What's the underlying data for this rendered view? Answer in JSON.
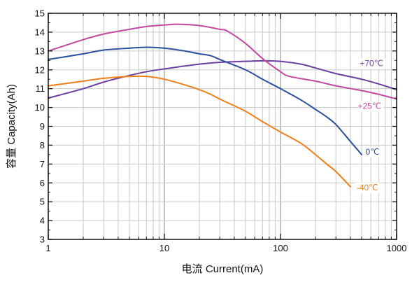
{
  "chart_data": {
    "type": "line",
    "x_scale": "log",
    "grid": true,
    "xlabel": "电流 Current(mA)",
    "ylabel": "容量 Capacity(Ah)",
    "xlim": [
      1,
      1000
    ],
    "ylim": [
      3,
      15
    ],
    "x_ticks": [
      1,
      10,
      100,
      1000
    ],
    "x_tick_labels": [
      "1",
      "10",
      "100",
      "1000"
    ],
    "y_ticks": [
      3,
      4,
      5,
      6,
      7,
      8,
      9,
      10,
      11,
      12,
      13,
      14,
      15
    ],
    "y_tick_labels": [
      "3",
      "4",
      "5",
      "6",
      "7",
      "8",
      "9",
      "10",
      "11",
      "12",
      "13",
      "14",
      "15"
    ],
    "series": [
      {
        "name": "+70℃",
        "color": "#6a3fa0",
        "x": [
          1,
          2,
          3,
          5,
          7,
          10,
          20,
          30,
          50,
          70,
          100,
          150,
          200,
          300,
          500,
          700,
          1000
        ],
        "y": [
          10.5,
          11.0,
          11.35,
          11.7,
          11.9,
          12.05,
          12.3,
          12.4,
          12.45,
          12.48,
          12.45,
          12.3,
          12.1,
          11.8,
          11.5,
          11.25,
          10.95
        ]
      },
      {
        "name": "+25℃",
        "color": "#c2489e",
        "x": [
          1,
          2,
          3,
          5,
          7,
          10,
          13,
          20,
          30,
          35,
          50,
          70,
          100,
          120,
          200,
          300,
          500,
          700,
          1000
        ],
        "y": [
          13.0,
          13.6,
          13.9,
          14.15,
          14.3,
          14.38,
          14.42,
          14.35,
          14.15,
          14.05,
          13.4,
          12.6,
          11.9,
          11.65,
          11.4,
          11.15,
          10.9,
          10.7,
          10.45
        ]
      },
      {
        "name": "0℃",
        "color": "#2b4f9e",
        "x": [
          1,
          2,
          3,
          5,
          7,
          10,
          15,
          20,
          25,
          30,
          50,
          70,
          100,
          150,
          200,
          250,
          300,
          400,
          500
        ],
        "y": [
          12.55,
          12.85,
          13.05,
          13.15,
          13.2,
          13.15,
          13.0,
          12.85,
          12.75,
          12.55,
          12.0,
          11.5,
          11.0,
          10.4,
          9.9,
          9.5,
          9.1,
          8.2,
          7.5
        ]
      },
      {
        "name": "-40℃",
        "color": "#f07f18",
        "x": [
          1,
          2,
          3,
          5,
          7,
          10,
          15,
          20,
          25,
          30,
          50,
          70,
          100,
          150,
          200,
          250,
          300,
          400
        ],
        "y": [
          11.15,
          11.4,
          11.55,
          11.65,
          11.65,
          11.5,
          11.2,
          10.95,
          10.7,
          10.45,
          9.8,
          9.25,
          8.7,
          8.1,
          7.5,
          7.0,
          6.6,
          5.8
        ]
      }
    ]
  }
}
